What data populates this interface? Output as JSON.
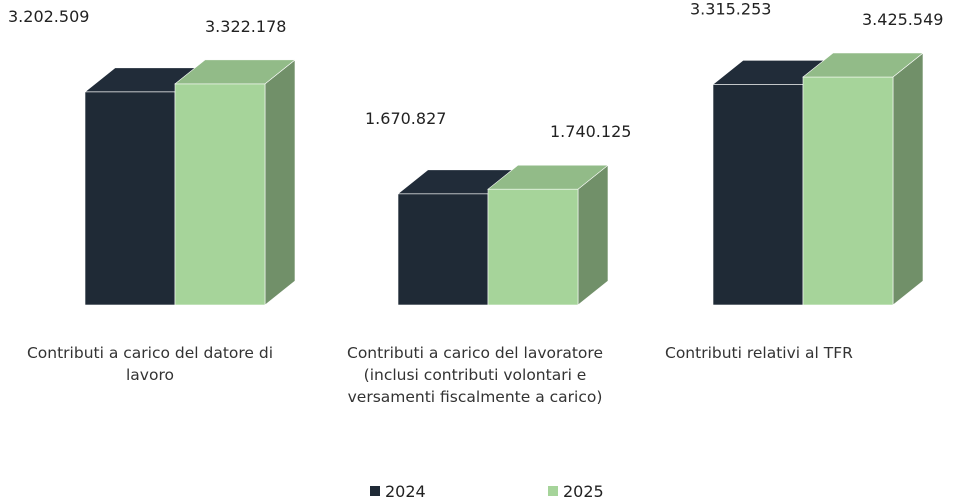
{
  "chart_data": {
    "type": "bar3d",
    "categories": [
      "Contributi a carico del datore di lavoro",
      "Contributi a carico del lavoratore (inclusi contributi volontari e versamenti fiscalmente a carico)",
      "Contributi relativi al TFR"
    ],
    "series": [
      {
        "name": "2024",
        "color": "#1f2a36",
        "values": [
          3202509,
          1670827,
          3315253
        ],
        "value_labels": [
          "3.202.509",
          "1.670.827",
          "3.315.253"
        ]
      },
      {
        "name": "2025",
        "color": "#a6d49a",
        "values": [
          3322178,
          1740125,
          3425549
        ],
        "value_labels": [
          "3.322.178",
          "1.740.125",
          "3.425.549"
        ]
      }
    ],
    "legend": "bottom"
  }
}
